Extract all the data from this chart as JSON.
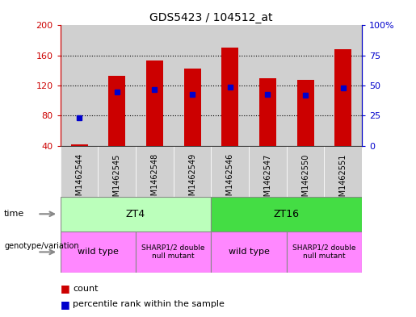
{
  "title": "GDS5423 / 104512_at",
  "samples": [
    "GSM1462544",
    "GSM1462545",
    "GSM1462548",
    "GSM1462549",
    "GSM1462546",
    "GSM1462547",
    "GSM1462550",
    "GSM1462551"
  ],
  "count_values": [
    42,
    133,
    153,
    143,
    170,
    130,
    128,
    168
  ],
  "percentile_values": [
    23,
    45,
    47,
    43,
    49,
    43,
    42,
    48
  ],
  "count_base": 40,
  "ylim_left": [
    40,
    200
  ],
  "ylim_right": [
    0,
    100
  ],
  "yticks_left": [
    40,
    80,
    120,
    160,
    200
  ],
  "yticks_right": [
    0,
    25,
    50,
    75,
    100
  ],
  "bar_color": "#cc0000",
  "dot_color": "#0000cc",
  "bar_width": 0.45,
  "left_axis_color": "#cc0000",
  "right_axis_color": "#0000cc",
  "grid_color": "#000000",
  "col_bg_color": "#d0d0d0",
  "zt4_color": "#bbffbb",
  "zt16_color": "#44dd44",
  "geno_color": "#ff88ff",
  "title_fontsize": 10,
  "tick_fontsize": 8,
  "sample_fontsize": 7
}
